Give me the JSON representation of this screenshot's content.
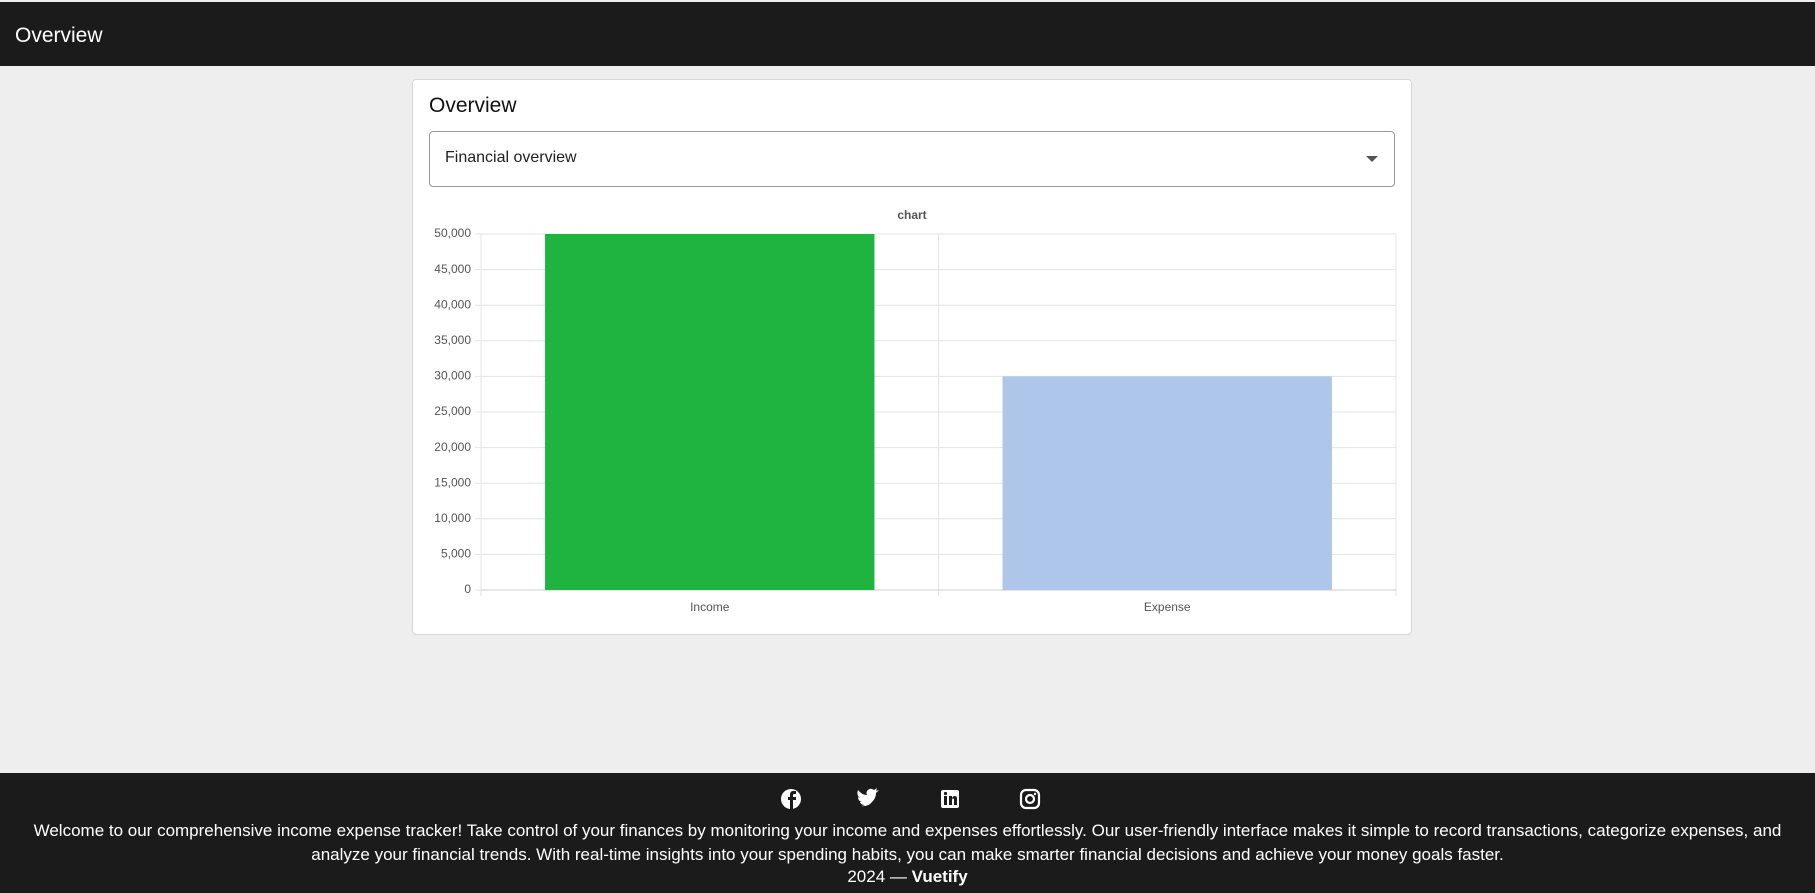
{
  "header": {
    "title": "Overview"
  },
  "card": {
    "title": "Overview",
    "select": "Financial overview"
  },
  "chart_data": {
    "type": "bar",
    "title": "chart",
    "categories": [
      "Income",
      "Expense"
    ],
    "values": [
      50000,
      30000
    ],
    "colors": [
      "#1fb33f",
      "#aec6e9"
    ],
    "ylim": [
      0,
      50000
    ],
    "yticks": [
      0,
      {
        "value": 5000,
        "label": "5,000"
      },
      {
        "value": 10000,
        "label": "10,000"
      },
      {
        "value": 15000,
        "label": "15,000"
      },
      {
        "value": 20000,
        "label": "20,000"
      },
      {
        "value": 25000,
        "label": "25,000"
      },
      {
        "value": 30000,
        "label": "30,000"
      },
      {
        "value": 35000,
        "label": "35,000"
      },
      {
        "value": 40000,
        "label": "40,000"
      },
      {
        "value": 45000,
        "label": "45,000"
      },
      {
        "value": 50000,
        "label": "50,000"
      }
    ],
    "grid": true
  },
  "footer": {
    "text": "Welcome to our comprehensive income expense tracker! Take control of your finances by monitoring your income and expenses effortlessly. Our user-friendly interface makes it simple to record transactions, categorize expenses, and analyze your financial trends. With real-time insights into your spending habits, you can make smarter financial decisions and achieve your money goals faster.",
    "year": "2024 —",
    "brand": "Vuetify"
  }
}
